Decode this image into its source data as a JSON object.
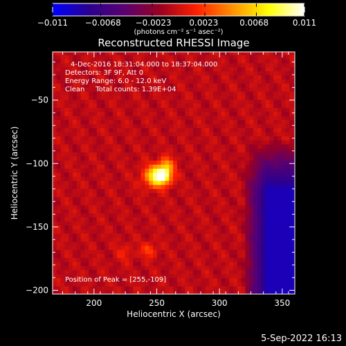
{
  "colorbar": {
    "ticks": [
      "−0.011",
      "−0.0068",
      "−0.0023",
      "0.0023",
      "0.0068",
      "0.011"
    ],
    "units_label": "(photons cm⁻² s⁻¹ asec⁻²)"
  },
  "info": {
    "line1": "4-Dec-2016 18:31:04.000 to 18:37:04.000",
    "line2": "Detectors: 3F 9F, Att 0",
    "line3": "Energy Range: 6.0 - 12.0 keV",
    "line4": "Clean     Total counts: 1.39E+04",
    "peak": "Position of Peak = [255,-109]"
  },
  "timestamp": "5-Sep-2022 16:13",
  "colors": {
    "background": "#000000",
    "text": "#ffffff",
    "colorscale": [
      "#0000ff",
      "#2a0090",
      "#5a0070",
      "#9a0020",
      "#ff2000",
      "#ff9000",
      "#ffff00",
      "#ffffff"
    ]
  },
  "chart_data": {
    "type": "heatmap",
    "title": "Reconstructed RHESSI Image",
    "xlabel": "Heliocentric X (arcsec)",
    "ylabel": "Heliocentric Y (arcsec)",
    "xlim": [
      167,
      360
    ],
    "ylim": [
      -203,
      -12
    ],
    "x_ticks": [
      200,
      250,
      300,
      350
    ],
    "y_ticks": [
      -50,
      -100,
      -150,
      -200
    ],
    "x_tick_labels": [
      "200",
      "250",
      "300",
      "350"
    ],
    "y_tick_labels": [
      "−50",
      "−100",
      "−150",
      "−200"
    ],
    "colorscale_range": [
      -0.011,
      0.011
    ],
    "background_level": -0.0005,
    "sources": [
      {
        "x": 255,
        "y": -109,
        "value": 0.011,
        "sigma": 5
      },
      {
        "x": 247,
        "y": -110,
        "value": 0.006,
        "sigma": 6
      },
      {
        "x": 258,
        "y": -100,
        "value": 0.004,
        "sigma": 4
      },
      {
        "x": 244,
        "y": -168,
        "value": 0.003,
        "sigma": 4
      },
      {
        "x": 225,
        "y": -170,
        "value": 0.0015,
        "sigma": 5
      }
    ],
    "dark_region": {
      "x_min": 318,
      "y_min": -203,
      "y_max": -80,
      "value": -0.009
    },
    "colorbar_ticks": [
      -0.011,
      -0.0068,
      -0.0023,
      0.0023,
      0.0068,
      0.011
    ]
  }
}
